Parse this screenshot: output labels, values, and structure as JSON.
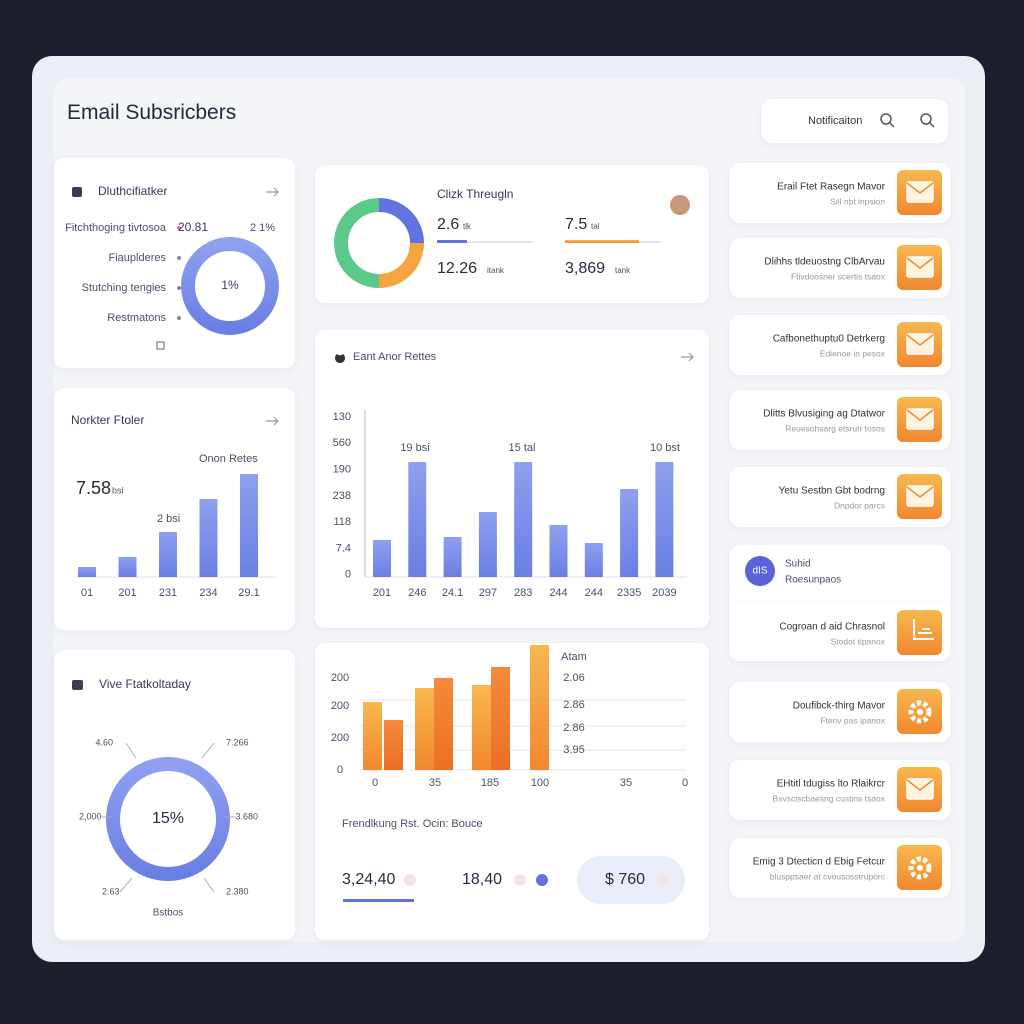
{
  "header": {
    "title": "Email Subsricbers",
    "search_label": "Notificaiton"
  },
  "breakdown": {
    "title": "Dluthcifiatker",
    "legend": [
      "Fitchthoging tivtosoa",
      "Fiauplderes",
      "Stutching tengies",
      "Restmatons"
    ],
    "labels": [
      "20.81",
      "2 1%"
    ],
    "center": "1%"
  },
  "bar_card": {
    "title": "Norkter Ftoler",
    "note": "Onon Retes",
    "value": "7.58",
    "value_unit": "bsi",
    "bar_note": "2 bsi",
    "categories": [
      "01",
      "201",
      "231",
      "234",
      "29.1"
    ],
    "values": [
      10,
      20,
      45,
      78,
      103
    ]
  },
  "ring_card": {
    "title": "Vive Ftatkoltaday",
    "center": "15%",
    "labels": [
      "4.60",
      "7.266",
      "2,000",
      "3.680",
      "2.63",
      "2.380"
    ],
    "footer": "Bstbos"
  },
  "clicks": {
    "title": "Clizk Threugln",
    "stats": [
      {
        "value": "2.6",
        "unit": "tlk"
      },
      {
        "value": "7.5",
        "unit": "tal"
      },
      {
        "value": "12.26",
        "unit": "itank"
      },
      {
        "value": "3,869",
        "unit": "tank"
      }
    ]
  },
  "rates": {
    "title": "Eant Anor Rettes",
    "y_labels": [
      "130",
      "560",
      "190",
      "238",
      "118",
      "7.4",
      "0"
    ],
    "categories": [
      "201",
      "246",
      "24.1",
      "297",
      "283",
      "244",
      "244",
      "2335",
      "2039"
    ],
    "values": [
      37,
      115,
      40,
      65,
      115,
      52,
      34,
      88,
      115
    ],
    "notes": [
      "19 bsi",
      "15 tal",
      "10 bst"
    ]
  },
  "orange": {
    "left_labels": [
      "200",
      "200",
      "200",
      "0"
    ],
    "right_labels": [
      "Atam",
      "2.06",
      "2.86",
      "2.86",
      "3.95"
    ],
    "x_labels": [
      "0",
      "35",
      "185",
      "100",
      "35",
      "0"
    ],
    "values": [
      68,
      50,
      82,
      92,
      85,
      103,
      125
    ]
  },
  "summary": {
    "title": "Frendlkung Rst. Ocin: Bouce",
    "values": [
      "3,24,40",
      "18,40",
      "$ 760"
    ]
  },
  "list": [
    {
      "title": "Erail Ftet Rasegn Mavor",
      "subtitle": "Sill nbt inpsion",
      "icon": "mail"
    },
    {
      "title": "Dlihhs tldeuostng ClbArvau",
      "subtitle": "Ftivdoosner scertis tsaox",
      "icon": "mail"
    },
    {
      "title": "Cafbonethuptu0 Detrkerg",
      "subtitle": "Edienoe in pesox",
      "icon": "mail"
    },
    {
      "title": "Dlitts Blvusiging ag Dtatwor",
      "subtitle": "Reuesohsarg etsrutr tosos",
      "icon": "mail"
    },
    {
      "title": "Yetu Sestbn Gbt bodrng",
      "subtitle": "Dnpdor parcs",
      "icon": "mail"
    },
    {
      "title": "Suhid",
      "subtitle": "Roesunpaos",
      "icon": "avatar",
      "badge": "dIS"
    },
    {
      "title": "Cogroan d aid Chrasnol",
      "subtitle": "Stodot tipanox",
      "icon": "tool"
    },
    {
      "title": "Doufibck-thirg Mavor",
      "subtitle": "Ftenv pas ipanox",
      "icon": "gear"
    },
    {
      "title": "EHtitl tdugiss lto Rlaikrcr",
      "subtitle": "Bsvsciscbaesng custins tsaox",
      "icon": "mail"
    },
    {
      "title": "Emig 3 Dtecticn d Ebig Fetcur",
      "subtitle": "blusppsaer at cvousosstruporc",
      "icon": "gear"
    }
  ]
}
